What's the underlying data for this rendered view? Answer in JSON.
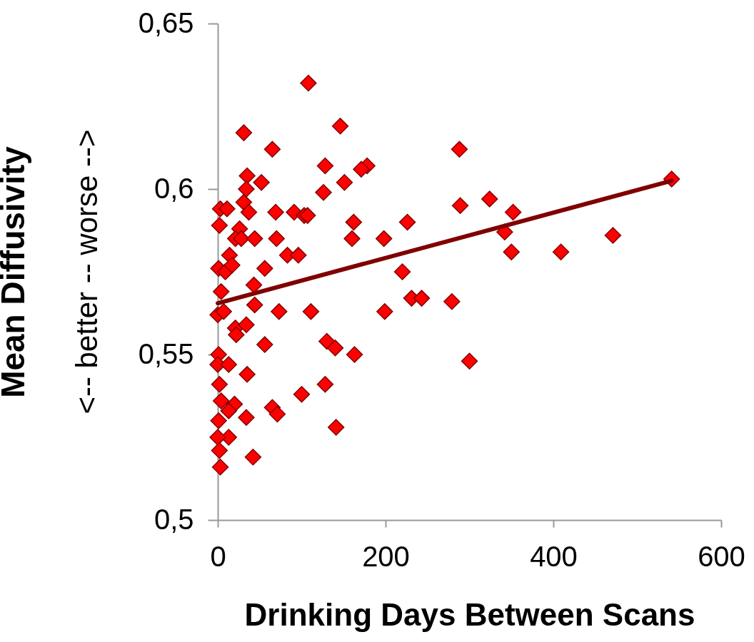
{
  "chart_data": {
    "type": "scatter",
    "xlabel": "Drinking Days Between Scans",
    "ylabel": "Mean Diffusivity",
    "annotations": [
      "<-- better -- worse -->"
    ],
    "xlim": [
      0,
      600
    ],
    "xticks": [
      0,
      200,
      400,
      600
    ],
    "ylim": [
      0.5,
      0.65
    ],
    "yticks": [
      {
        "value": 0.5,
        "label": "0,5"
      },
      {
        "value": 0.55,
        "label": "0,55"
      },
      {
        "value": 0.6,
        "label": "0,6"
      },
      {
        "value": 0.65,
        "label": "0,65"
      }
    ],
    "grid": false,
    "marker": "diamond",
    "series": [
      {
        "color": "#ff0000",
        "x": [
          108,
          146,
          31,
          65,
          288,
          128,
          178,
          171,
          35,
          52,
          126,
          151,
          34,
          324,
          3,
          11,
          31,
          37,
          69,
          91,
          103,
          107,
          289,
          352,
          162,
          226,
          2,
          26,
          342,
          21,
          28,
          44,
          70,
          160,
          198,
          471,
          14,
          83,
          96,
          350,
          409,
          1,
          9,
          17,
          56,
          220,
          43,
          4,
          44,
          231,
          243,
          279,
          73,
          111,
          199,
          0,
          7,
          21,
          34,
          22,
          56,
          130,
          140,
          163,
          1,
          0,
          13,
          35,
          300,
          2,
          100,
          128,
          4,
          20,
          13,
          34,
          65,
          71,
          1,
          13,
          0,
          141,
          2,
          42,
          3,
          541
        ],
        "values": [
          0.632,
          0.619,
          0.617,
          0.612,
          0.612,
          0.607,
          0.607,
          0.606,
          0.604,
          0.602,
          0.599,
          0.602,
          0.6,
          0.597,
          0.594,
          0.594,
          0.596,
          0.593,
          0.593,
          0.593,
          0.592,
          0.592,
          0.595,
          0.593,
          0.59,
          0.59,
          0.589,
          0.588,
          0.587,
          0.585,
          0.585,
          0.585,
          0.585,
          0.585,
          0.585,
          0.586,
          0.58,
          0.58,
          0.58,
          0.581,
          0.581,
          0.576,
          0.575,
          0.577,
          0.576,
          0.575,
          0.571,
          0.569,
          0.565,
          0.567,
          0.567,
          0.566,
          0.563,
          0.563,
          0.563,
          0.562,
          0.563,
          0.558,
          0.559,
          0.556,
          0.553,
          0.554,
          0.552,
          0.55,
          0.55,
          0.547,
          0.547,
          0.544,
          0.548,
          0.541,
          0.538,
          0.541,
          0.536,
          0.535,
          0.533,
          0.531,
          0.534,
          0.532,
          0.53,
          0.525,
          0.525,
          0.528,
          0.521,
          0.519,
          0.516,
          0.603
        ]
      },
      {
        "type": "line",
        "color": "#800000",
        "marker": "none",
        "x": [
          0,
          541
        ],
        "values": [
          0.5655,
          0.6025
        ]
      }
    ]
  }
}
